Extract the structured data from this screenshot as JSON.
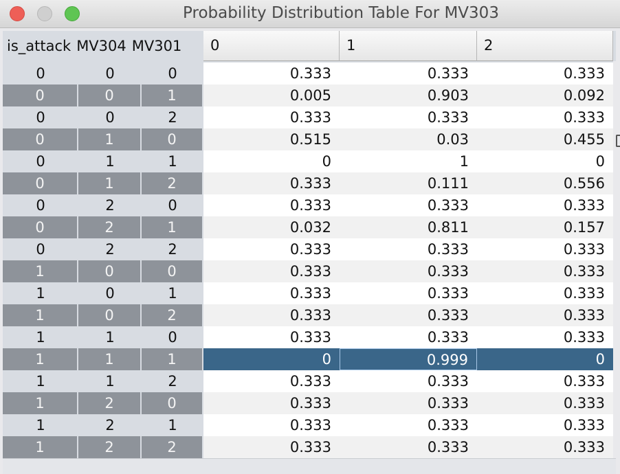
{
  "window": {
    "title": "Probability Distribution Table For MV303"
  },
  "table": {
    "row_header_columns": [
      "is_attack",
      "MV304",
      "MV301"
    ],
    "columns": [
      "0",
      "1",
      "2"
    ],
    "rows": [
      {
        "keys": [
          "0",
          "0",
          "0"
        ],
        "values": [
          "0.333",
          "0.333",
          "0.333"
        ]
      },
      {
        "keys": [
          "0",
          "0",
          "1"
        ],
        "values": [
          "0.005",
          "0.903",
          "0.092"
        ]
      },
      {
        "keys": [
          "0",
          "0",
          "2"
        ],
        "values": [
          "0.333",
          "0.333",
          "0.333"
        ]
      },
      {
        "keys": [
          "0",
          "1",
          "0"
        ],
        "values": [
          "0.515",
          "0.03",
          "0.455"
        ]
      },
      {
        "keys": [
          "0",
          "1",
          "1"
        ],
        "values": [
          "0",
          "1",
          "0"
        ]
      },
      {
        "keys": [
          "0",
          "1",
          "2"
        ],
        "values": [
          "0.333",
          "0.111",
          "0.556"
        ]
      },
      {
        "keys": [
          "0",
          "2",
          "0"
        ],
        "values": [
          "0.333",
          "0.333",
          "0.333"
        ]
      },
      {
        "keys": [
          "0",
          "2",
          "1"
        ],
        "values": [
          "0.032",
          "0.811",
          "0.157"
        ]
      },
      {
        "keys": [
          "0",
          "2",
          "2"
        ],
        "values": [
          "0.333",
          "0.333",
          "0.333"
        ]
      },
      {
        "keys": [
          "1",
          "0",
          "0"
        ],
        "values": [
          "0.333",
          "0.333",
          "0.333"
        ]
      },
      {
        "keys": [
          "1",
          "0",
          "1"
        ],
        "values": [
          "0.333",
          "0.333",
          "0.333"
        ]
      },
      {
        "keys": [
          "1",
          "0",
          "2"
        ],
        "values": [
          "0.333",
          "0.333",
          "0.333"
        ]
      },
      {
        "keys": [
          "1",
          "1",
          "0"
        ],
        "values": [
          "0.333",
          "0.333",
          "0.333"
        ]
      },
      {
        "keys": [
          "1",
          "1",
          "1"
        ],
        "values": [
          "0",
          "0.999",
          "0"
        ]
      },
      {
        "keys": [
          "1",
          "1",
          "2"
        ],
        "values": [
          "0.333",
          "0.333",
          "0.333"
        ]
      },
      {
        "keys": [
          "1",
          "2",
          "0"
        ],
        "values": [
          "0.333",
          "0.333",
          "0.333"
        ]
      },
      {
        "keys": [
          "1",
          "2",
          "1"
        ],
        "values": [
          "0.333",
          "0.333",
          "0.333"
        ]
      },
      {
        "keys": [
          "1",
          "2",
          "2"
        ],
        "values": [
          "0.333",
          "0.333",
          "0.333"
        ]
      }
    ],
    "selected_row": 13,
    "focused_column": 1
  },
  "colors": {
    "selection": "#3a6689",
    "row_header_dark": "#8e939a",
    "row_header_light": "#d8dce2"
  }
}
